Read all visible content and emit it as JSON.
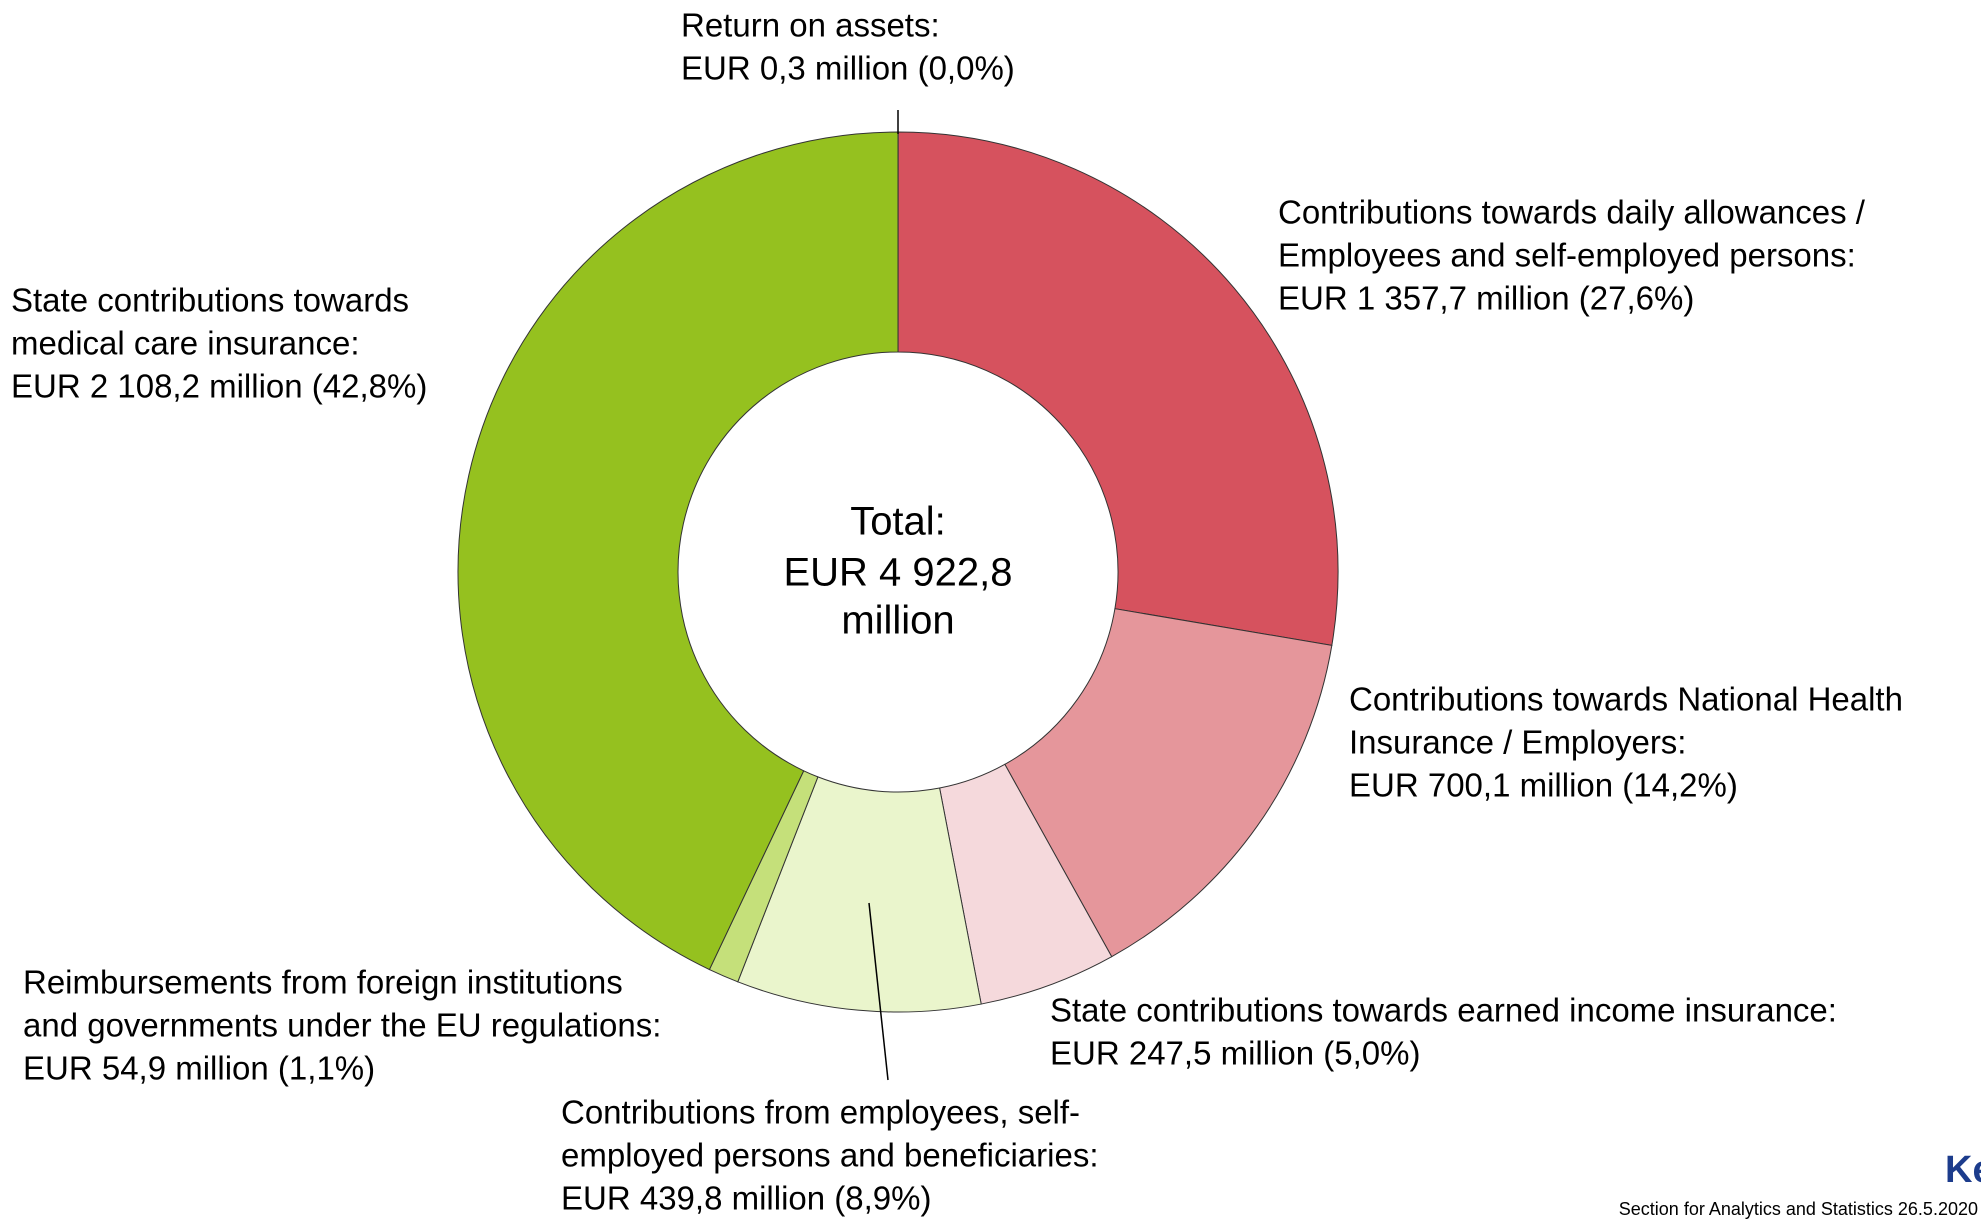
{
  "chart_data": {
    "type": "pie",
    "categories": [
      [
        "Return on assets:"
      ],
      [
        "Contributions towards daily allowances /",
        "Employees and self-employed persons:"
      ],
      [
        "Contributions towards National Health",
        "Insurance / Employers:"
      ],
      [
        "State contributions towards earned income insurance:"
      ],
      [
        "Contributions from employees, self-",
        "employed persons and beneficiaries:"
      ],
      [
        "Reimbursements from foreign institutions",
        "and governments under the EU regulations:"
      ],
      [
        "State contributions towards",
        "medical care insurance:"
      ]
    ],
    "values": [
      0.3,
      1357.7,
      700.1,
      247.5,
      439.8,
      54.9,
      2108.2
    ],
    "value_labels": [
      "EUR 0,3 million (0,0%)",
      "EUR 1 357,7 million (27,6%)",
      "EUR 700,1 million (14,2%)",
      "EUR 247,5 million (5,0%)",
      "EUR 439,8 million (8,9%)",
      "EUR 54,9 million (1,1%)",
      "EUR 2 108,2 million (42,8%)"
    ],
    "colors": [
      "#d6525e",
      "#d6525e",
      "#e5969b",
      "#f5d9dc",
      "#eaf5cc",
      "#c5e07a",
      "#95c11f"
    ],
    "center_label": [
      "Total:",
      "EUR 4 922,8",
      "million"
    ],
    "footer": "Section for Analytics and Statistics 26.5.2020",
    "logo": "Ke"
  }
}
